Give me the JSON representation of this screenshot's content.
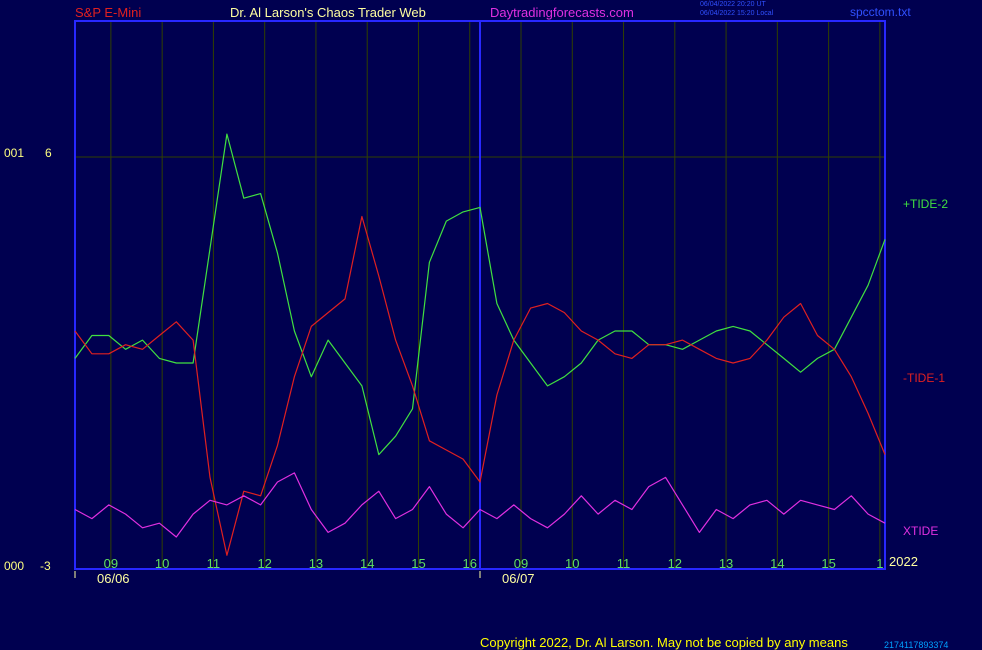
{
  "header": {
    "symbol": "S&P E-Mini",
    "author": "Dr. Al Larson's Chaos Trader Web",
    "site": "Daytradingforecasts.com",
    "stamp_ut": "06/04/2022 20:20 UT",
    "stamp_local": "06/04/2022 15:20 Local",
    "filename": "spcctom.txt"
  },
  "y_axis": {
    "top_left": "001",
    "top_value": "6",
    "bottom_left": "000",
    "bottom_value": "-3"
  },
  "footer": {
    "copyright": "Copyright 2022, Dr. Al Larson. May not be copied by any means",
    "code": "2174117893374"
  },
  "colors": {
    "background": "#000050",
    "frame": "#2828ff",
    "grid": "#304000",
    "tide2": "#40e040",
    "tide1": "#e02020",
    "xtide": "#e030e0",
    "hour_labels": "#60e060",
    "symbol": "#e02020",
    "site": "#e030e0"
  },
  "chart_data": {
    "type": "line",
    "ylim": [
      -3,
      6
    ],
    "x_tick_labels": [
      "09",
      "10",
      "11",
      "12",
      "13",
      "14",
      "15",
      "16",
      "09",
      "10",
      "11",
      "12",
      "13",
      "14",
      "15",
      "1"
    ],
    "x_tick_year": "2022",
    "date_labels": [
      "06/06",
      "06/07"
    ],
    "series": [
      {
        "name": "+TIDE-2",
        "values": [
          1.6,
          2.1,
          2.1,
          1.8,
          2.0,
          1.6,
          1.5,
          1.5,
          4.0,
          6.5,
          5.1,
          5.2,
          3.9,
          2.2,
          1.2,
          2.0,
          1.5,
          1.0,
          -0.5,
          -0.1,
          0.5,
          3.7,
          4.6,
          4.8,
          4.9,
          2.8,
          2.0,
          1.5,
          1.0,
          1.2,
          1.5,
          2.0,
          2.2,
          2.2,
          1.9,
          1.9,
          1.8,
          2.0,
          2.2,
          2.3,
          2.2,
          1.9,
          1.6,
          1.3,
          1.6,
          1.8,
          2.5,
          3.2,
          4.2
        ]
      },
      {
        "name": "-TIDE-1",
        "values": [
          2.2,
          1.7,
          1.7,
          1.9,
          1.8,
          2.1,
          2.4,
          2.0,
          -1.0,
          -2.7,
          -1.3,
          -1.4,
          -0.3,
          1.2,
          2.3,
          2.6,
          2.9,
          4.7,
          3.4,
          2.0,
          1.0,
          -0.2,
          -0.4,
          -0.6,
          -1.1,
          0.8,
          2.0,
          2.7,
          2.8,
          2.6,
          2.2,
          2.0,
          1.7,
          1.6,
          1.9,
          1.9,
          2.0,
          1.8,
          1.6,
          1.5,
          1.6,
          2.0,
          2.5,
          2.8,
          2.1,
          1.8,
          1.2,
          0.4,
          -0.5
        ]
      },
      {
        "name": "XTIDE",
        "values": [
          -1.7,
          -1.9,
          -1.6,
          -1.8,
          -2.1,
          -2.0,
          -2.3,
          -1.8,
          -1.5,
          -1.6,
          -1.4,
          -1.6,
          -1.1,
          -0.9,
          -1.7,
          -2.2,
          -2.0,
          -1.6,
          -1.3,
          -1.9,
          -1.7,
          -1.2,
          -1.8,
          -2.1,
          -1.7,
          -1.9,
          -1.6,
          -1.9,
          -2.1,
          -1.8,
          -1.4,
          -1.8,
          -1.5,
          -1.7,
          -1.2,
          -1.0,
          -1.6,
          -2.2,
          -1.7,
          -1.9,
          -1.6,
          -1.5,
          -1.8,
          -1.5,
          -1.6,
          -1.7,
          -1.4,
          -1.8,
          -2.0
        ]
      }
    ]
  }
}
